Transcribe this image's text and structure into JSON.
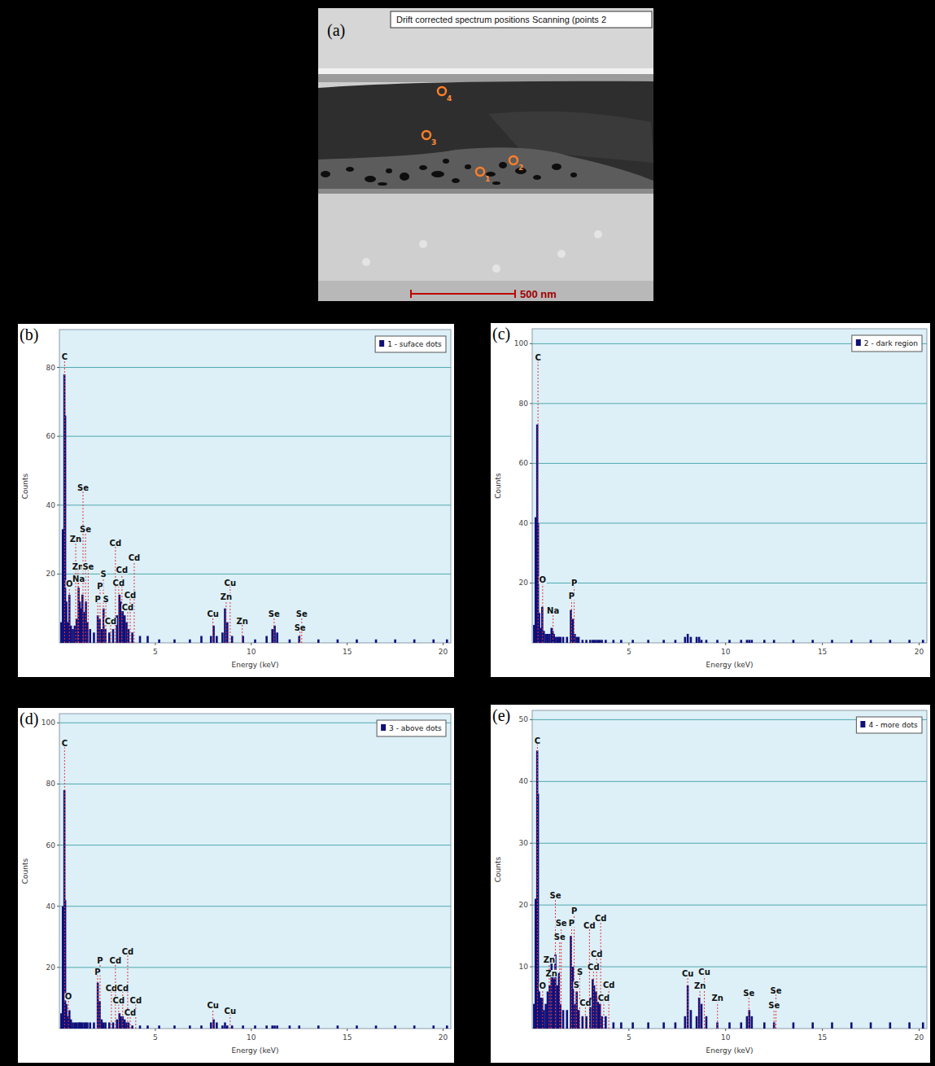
{
  "image_panel": {
    "panel_label": "(a)",
    "title": "Drift corrected spectrum positions Scanning (points 2",
    "points": [
      "1",
      "2",
      "3",
      "4"
    ],
    "scale_bar": "500 nm"
  },
  "chart_data": [
    {
      "type": "bar",
      "panel_label": "(b)",
      "x_label": "Energy (keV)",
      "y_label": "Counts",
      "x": [
        0.1,
        0.18,
        0.26,
        0.3,
        0.36,
        0.44,
        0.52,
        0.6,
        0.7,
        0.8,
        0.9,
        1.0,
        1.06,
        1.12,
        1.2,
        1.3,
        1.38,
        1.46,
        1.6,
        1.8,
        2.0,
        2.1,
        2.2,
        2.3,
        2.4,
        2.6,
        2.8,
        3.0,
        3.13,
        3.2,
        3.3,
        3.4,
        3.5,
        3.6,
        3.8,
        4.2,
        4.6,
        5.2,
        6.0,
        6.8,
        7.4,
        7.9,
        8.04,
        8.2,
        8.5,
        8.63,
        8.75,
        9.0,
        9.57,
        10.2,
        10.8,
        11.1,
        11.22,
        11.35,
        12.0,
        12.5,
        13.5,
        14.5,
        15.5,
        16.5,
        17.5,
        18.5,
        19.5,
        20.2
      ],
      "series": [
        {
          "name": "1 - suface dots",
          "color": "#10107a",
          "values": [
            6,
            33,
            78,
            66,
            12,
            6,
            14,
            5,
            4,
            5,
            7,
            16,
            12,
            10,
            14,
            9,
            12,
            6,
            4,
            3,
            8,
            7,
            4,
            10,
            4,
            3,
            4,
            8,
            14,
            12,
            10,
            8,
            6,
            4,
            3,
            2,
            2,
            1,
            1,
            1,
            2,
            2,
            5,
            2,
            3,
            10,
            6,
            2,
            2,
            1,
            2,
            4,
            5,
            3,
            1,
            2,
            1,
            1,
            1,
            1,
            1,
            1,
            1,
            1
          ]
        }
      ],
      "xlim": [
        0,
        20.4
      ],
      "xticks": [
        5,
        10,
        15,
        20
      ],
      "ylim": [
        0,
        91
      ],
      "yticks": [
        20,
        40,
        60,
        80
      ],
      "grid": "y",
      "legend": "upper right",
      "annotations": [
        {
          "text": "C",
          "x": 0.27,
          "y": 82
        },
        {
          "text": "O",
          "x": 0.52,
          "y": 16
        },
        {
          "text": "Zn",
          "x": 0.85,
          "y": 29
        },
        {
          "text": "Zn",
          "x": 0.97,
          "y": 21
        },
        {
          "text": "Na",
          "x": 1.0,
          "y": 17.5
        },
        {
          "text": "Se",
          "x": 1.23,
          "y": 44
        },
        {
          "text": "Se",
          "x": 1.36,
          "y": 32
        },
        {
          "text": "Se",
          "x": 1.5,
          "y": 21
        },
        {
          "text": "P",
          "x": 2.12,
          "y": 15.4
        },
        {
          "text": "P",
          "x": 2.0,
          "y": 11.6
        },
        {
          "text": "S",
          "x": 2.29,
          "y": 19
        },
        {
          "text": "S",
          "x": 2.42,
          "y": 11.6
        },
        {
          "text": "Cd",
          "x": 2.92,
          "y": 28
        },
        {
          "text": "Cd",
          "x": 3.26,
          "y": 20
        },
        {
          "text": "Cd",
          "x": 3.09,
          "y": 16.4
        },
        {
          "text": "Cd",
          "x": 3.69,
          "y": 12.8
        },
        {
          "text": "Cd",
          "x": 3.56,
          "y": 9.2
        },
        {
          "text": "Cd",
          "x": 2.67,
          "y": 5.2
        },
        {
          "text": "Cd",
          "x": 3.9,
          "y": 23.7
        },
        {
          "text": "Cu",
          "x": 8.0,
          "y": 7.3
        },
        {
          "text": "Cu",
          "x": 8.9,
          "y": 16.4
        },
        {
          "text": "Zn",
          "x": 8.69,
          "y": 12.3
        },
        {
          "text": "Zn",
          "x": 9.53,
          "y": 5.2
        },
        {
          "text": "Se",
          "x": 11.19,
          "y": 7.3
        },
        {
          "text": "Se",
          "x": 12.63,
          "y": 7.3
        },
        {
          "text": "Se",
          "x": 12.54,
          "y": 3.3
        }
      ]
    },
    {
      "type": "bar",
      "panel_label": "(c)",
      "x_label": "Energy (keV)",
      "y_label": "Counts",
      "x": [
        0.1,
        0.18,
        0.26,
        0.3,
        0.36,
        0.44,
        0.52,
        0.6,
        0.7,
        0.8,
        0.9,
        1.0,
        1.06,
        1.12,
        1.2,
        1.3,
        1.38,
        1.46,
        1.6,
        1.8,
        2.0,
        2.1,
        2.2,
        2.3,
        2.4,
        2.6,
        2.8,
        3.0,
        3.13,
        3.2,
        3.3,
        3.4,
        3.5,
        3.6,
        3.8,
        4.2,
        4.6,
        5.2,
        6.0,
        6.8,
        7.4,
        7.9,
        8.04,
        8.2,
        8.5,
        8.63,
        8.75,
        9.0,
        9.57,
        10.2,
        10.8,
        11.1,
        11.22,
        11.35,
        12.0,
        12.5,
        13.5,
        14.5,
        15.5,
        16.5,
        17.5,
        18.5,
        19.5,
        20.2
      ],
      "series": [
        {
          "name": "2 - dark region",
          "color": "#10107a",
          "values": [
            6,
            42,
            73,
            40,
            10,
            5,
            12,
            4,
            3,
            3,
            3,
            5,
            4,
            3,
            2,
            2,
            2,
            2,
            2,
            2,
            11,
            8,
            3,
            2,
            2,
            1,
            1,
            1,
            1,
            1,
            1,
            1,
            1,
            1,
            1,
            1,
            1,
            1,
            1,
            1,
            1,
            2,
            3,
            2,
            2,
            2,
            1,
            1,
            1,
            1,
            1,
            1,
            1,
            1,
            1,
            1,
            1,
            1,
            1,
            1,
            1,
            1,
            1,
            1
          ]
        }
      ],
      "xlim": [
        0,
        20.4
      ],
      "xticks": [
        5,
        10,
        15,
        20
      ],
      "ylim": [
        0,
        105
      ],
      "yticks": [
        20,
        40,
        60,
        80,
        100
      ],
      "grid": "y",
      "legend": "upper right",
      "annotations": [
        {
          "text": "C",
          "x": 0.3,
          "y": 94
        },
        {
          "text": "O",
          "x": 0.54,
          "y": 19.8
        },
        {
          "text": "Na",
          "x": 1.08,
          "y": 9.6
        },
        {
          "text": "P",
          "x": 2.17,
          "y": 18.7
        },
        {
          "text": "P",
          "x": 2.04,
          "y": 14.3
        }
      ]
    },
    {
      "type": "bar",
      "panel_label": "(d)",
      "x_label": "Energy (keV)",
      "y_label": "Counts",
      "x": [
        0.1,
        0.18,
        0.26,
        0.3,
        0.36,
        0.44,
        0.52,
        0.6,
        0.7,
        0.8,
        0.9,
        1.0,
        1.06,
        1.12,
        1.2,
        1.3,
        1.38,
        1.46,
        1.6,
        1.8,
        2.0,
        2.1,
        2.2,
        2.3,
        2.4,
        2.6,
        2.8,
        3.0,
        3.13,
        3.2,
        3.3,
        3.4,
        3.5,
        3.6,
        3.8,
        4.2,
        4.6,
        5.2,
        6.0,
        6.8,
        7.4,
        7.9,
        8.04,
        8.2,
        8.5,
        8.63,
        8.75,
        9.0,
        9.57,
        10.2,
        10.8,
        11.1,
        11.22,
        11.35,
        12.0,
        12.5,
        13.5,
        14.5,
        15.5,
        16.5,
        17.5,
        18.5,
        19.5,
        20.2
      ],
      "series": [
        {
          "name": "3 - above dots",
          "color": "#10107a",
          "values": [
            5,
            40,
            78,
            42,
            8,
            4,
            6,
            3,
            2,
            2,
            2,
            2,
            2,
            2,
            2,
            2,
            2,
            2,
            2,
            2,
            15,
            9,
            3,
            2,
            2,
            2,
            2,
            3,
            5,
            4,
            4,
            3,
            2,
            2,
            1,
            1,
            1,
            1,
            1,
            1,
            1,
            2,
            3,
            2,
            1,
            2,
            1,
            1,
            1,
            1,
            1,
            1,
            1,
            1,
            1,
            1,
            1,
            1,
            1,
            1,
            1,
            1,
            1,
            1
          ]
        }
      ],
      "xlim": [
        0,
        20.4
      ],
      "xticks": [
        5,
        10,
        15,
        20
      ],
      "ylim": [
        0,
        103
      ],
      "yticks": [
        20,
        40,
        60,
        80,
        100
      ],
      "grid": "y",
      "legend": "upper right",
      "annotations": [
        {
          "text": "C",
          "x": 0.27,
          "y": 92
        },
        {
          "text": "O",
          "x": 0.47,
          "y": 9.2
        },
        {
          "text": "P",
          "x": 2.12,
          "y": 21
        },
        {
          "text": "P",
          "x": 1.99,
          "y": 17.4
        },
        {
          "text": "Cd",
          "x": 2.92,
          "y": 21
        },
        {
          "text": "Cd",
          "x": 3.56,
          "y": 24
        },
        {
          "text": "Cd",
          "x": 2.71,
          "y": 12.1
        },
        {
          "text": "Cd",
          "x": 3.3,
          "y": 12.1
        },
        {
          "text": "Cd",
          "x": 3.09,
          "y": 7.9
        },
        {
          "text": "Cd",
          "x": 3.98,
          "y": 7.9
        },
        {
          "text": "Cd",
          "x": 3.69,
          "y": 3.9
        },
        {
          "text": "Cu",
          "x": 8.0,
          "y": 6.3
        },
        {
          "text": "Cu",
          "x": 8.9,
          "y": 4.5
        }
      ]
    },
    {
      "type": "bar",
      "panel_label": "(e)",
      "x_label": "Energy (keV)",
      "y_label": "Counts",
      "x": [
        0.1,
        0.18,
        0.26,
        0.3,
        0.36,
        0.44,
        0.52,
        0.6,
        0.7,
        0.8,
        0.9,
        1.0,
        1.06,
        1.12,
        1.2,
        1.3,
        1.38,
        1.46,
        1.6,
        1.8,
        2.0,
        2.1,
        2.2,
        2.3,
        2.4,
        2.6,
        2.8,
        3.0,
        3.13,
        3.2,
        3.3,
        3.4,
        3.5,
        3.6,
        3.8,
        4.2,
        4.6,
        5.2,
        6.0,
        6.8,
        7.4,
        7.9,
        8.04,
        8.2,
        8.5,
        8.63,
        8.75,
        9.0,
        9.57,
        10.2,
        10.8,
        11.1,
        11.22,
        11.35,
        12.0,
        12.5,
        13.5,
        14.5,
        15.5,
        16.5,
        17.5,
        18.5,
        19.5,
        20.2
      ],
      "series": [
        {
          "name": "4 - more dots",
          "color": "#10107a",
          "values": [
            4,
            21,
            45,
            38,
            6,
            5,
            5,
            3,
            4,
            6,
            7,
            11,
            9,
            8,
            12,
            7,
            9,
            4,
            3,
            3,
            15,
            10,
            4,
            6,
            3,
            2,
            2,
            5,
            8,
            7,
            6,
            5,
            4,
            2,
            2,
            1,
            1,
            1,
            1,
            1,
            1,
            2,
            7,
            3,
            2,
            5,
            4,
            2,
            1,
            1,
            1,
            2,
            3,
            2,
            1,
            1,
            1,
            1,
            1,
            1,
            1,
            1,
            1,
            1
          ]
        }
      ],
      "xlim": [
        0,
        20.4
      ],
      "xticks": [
        5,
        10,
        15,
        20
      ],
      "ylim": [
        0,
        51.5
      ],
      "yticks": [
        10,
        20,
        30,
        40,
        50
      ],
      "grid": "y",
      "legend": "upper right",
      "annotations": [
        {
          "text": "C",
          "x": 0.27,
          "y": 46
        },
        {
          "text": "O",
          "x": 0.54,
          "y": 6.3
        },
        {
          "text": "Zn",
          "x": 0.88,
          "y": 10.5
        },
        {
          "text": "Zn",
          "x": 1.0,
          "y": 8.3
        },
        {
          "text": "Se",
          "x": 1.2,
          "y": 21
        },
        {
          "text": "Se",
          "x": 1.5,
          "y": 16.4
        },
        {
          "text": "Se",
          "x": 1.42,
          "y": 14.2
        },
        {
          "text": "P",
          "x": 2.17,
          "y": 18.5
        },
        {
          "text": "P",
          "x": 2.04,
          "y": 16.4
        },
        {
          "text": "S",
          "x": 2.46,
          "y": 8.6
        },
        {
          "text": "S",
          "x": 2.29,
          "y": 6.4
        },
        {
          "text": "Cd",
          "x": 2.96,
          "y": 16.1
        },
        {
          "text": "Cd",
          "x": 3.54,
          "y": 17.2
        },
        {
          "text": "Cd",
          "x": 3.33,
          "y": 11.5
        },
        {
          "text": "Cd",
          "x": 3.17,
          "y": 9.4
        },
        {
          "text": "Cd",
          "x": 3.96,
          "y": 6.4
        },
        {
          "text": "Cd",
          "x": 3.7,
          "y": 4.3
        },
        {
          "text": "Cd",
          "x": 2.75,
          "y": 3.5
        },
        {
          "text": "Cu",
          "x": 8.04,
          "y": 8.3
        },
        {
          "text": "Cu",
          "x": 8.9,
          "y": 8.5
        },
        {
          "text": "Zn",
          "x": 8.67,
          "y": 6.3
        },
        {
          "text": "Zn",
          "x": 9.58,
          "y": 4.3
        },
        {
          "text": "Se",
          "x": 11.2,
          "y": 5.2
        },
        {
          "text": "Se",
          "x": 12.6,
          "y": 5.5
        },
        {
          "text": "Se",
          "x": 12.5,
          "y": 3.2
        }
      ]
    }
  ]
}
